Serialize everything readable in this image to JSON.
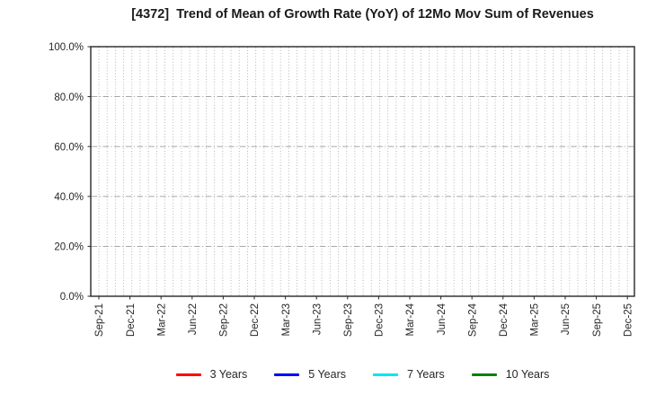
{
  "chart_data": {
    "type": "line",
    "title": "[4372]  Trend of Mean of Growth Rate (YoY) of 12Mo Mov Sum of Revenues",
    "categories": [
      "Sep-21",
      "Dec-21",
      "Mar-22",
      "Jun-22",
      "Sep-22",
      "Dec-22",
      "Mar-23",
      "Jun-23",
      "Sep-23",
      "Dec-23",
      "Mar-24",
      "Jun-24",
      "Sep-24",
      "Dec-24",
      "Mar-25",
      "Jun-25",
      "Sep-25",
      "Dec-25"
    ],
    "xlabel": "",
    "ylabel": "",
    "ylim": [
      0,
      100
    ],
    "y_tick_step": 20,
    "y_tick_labels": [
      "0.0%",
      "20.0%",
      "40.0%",
      "60.0%",
      "80.0%",
      "100.0%"
    ],
    "grid": true,
    "legend_position": "bottom",
    "series": [
      {
        "name": "3 Years",
        "color": "#ff0000",
        "values": []
      },
      {
        "name": "5 Years",
        "color": "#0000ff",
        "values": []
      },
      {
        "name": "7 Years",
        "color": "#00e5ee",
        "values": []
      },
      {
        "name": "10 Years",
        "color": "#008000",
        "values": []
      }
    ]
  },
  "colors": {
    "axis": "#262626",
    "grid_minor_vertical": "#aeaeae",
    "grid_major_horizontal": "#9c9c9c",
    "tick_label": "#262626",
    "title_text": "#1a1a1a"
  }
}
